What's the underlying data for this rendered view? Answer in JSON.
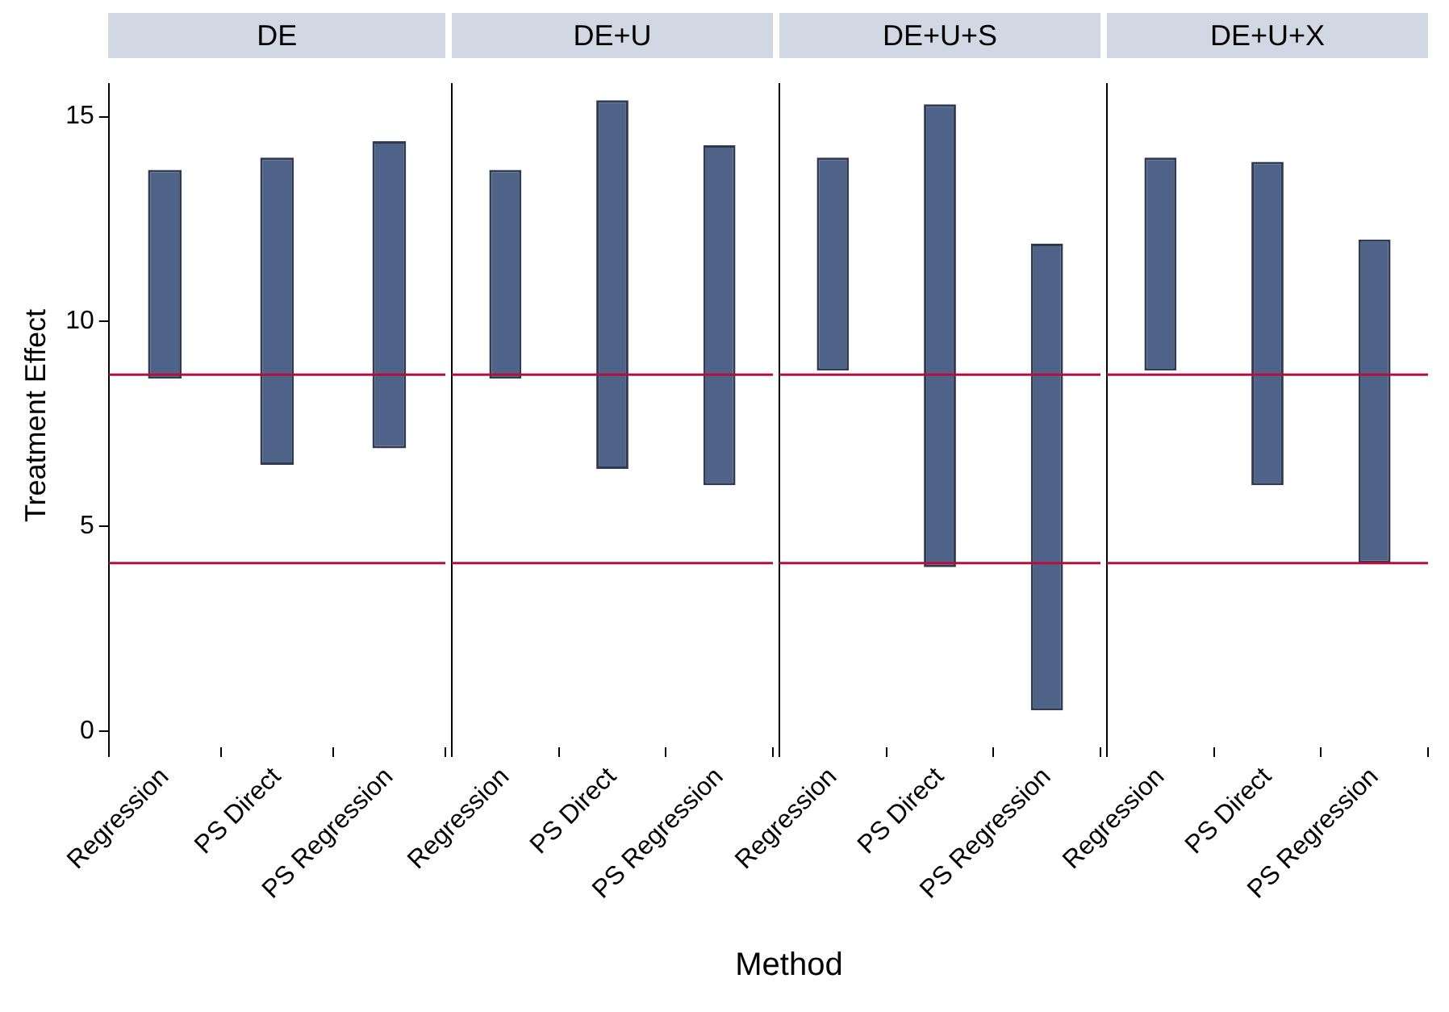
{
  "chart_data": [
    {
      "type": "bar",
      "title": "DE",
      "ylabel": "Treatment Effect",
      "categories": [
        "Regression",
        "PS Direct",
        "PS Regression"
      ],
      "base": [
        8.6,
        6.5,
        6.9
      ],
      "values": [
        5.1,
        7.5,
        7.5
      ],
      "color": "#4f6389",
      "ylim": [
        -0.4,
        15.8
      ],
      "yticks": [
        0,
        5,
        10,
        15
      ],
      "grid": false,
      "legend": false,
      "ref_lines": [
        {
          "axis": "y",
          "value": 8.7,
          "color": "#b5103c"
        },
        {
          "axis": "y",
          "value": 4.1,
          "color": "#b5103c"
        }
      ]
    },
    {
      "type": "bar",
      "title": "DE+U",
      "xlabel": "Method",
      "categories": [
        "Regression",
        "PS Direct",
        "PS Regression"
      ],
      "base": [
        8.6,
        6.4,
        6.0
      ],
      "values": [
        5.1,
        9.0,
        8.3
      ],
      "color": "#4f6389",
      "ylim": [
        -0.4,
        15.8
      ],
      "yticks": [
        0,
        5,
        10,
        15
      ],
      "tick_labels": "x",
      "grid": false,
      "legend": false,
      "ref_lines": [
        {
          "axis": "y",
          "value": 8.7,
          "color": "#b5103c"
        },
        {
          "axis": "y",
          "value": 4.1,
          "color": "#b5103c"
        }
      ]
    },
    {
      "type": "bar",
      "title": "DE+U+S",
      "categories": [
        "Regression",
        "PS Direct",
        "PS Regression"
      ],
      "base": [
        8.8,
        4.0,
        0.5
      ],
      "values": [
        5.2,
        11.3,
        11.4
      ],
      "color": "#4f6389",
      "ylim": [
        -0.4,
        15.8
      ],
      "yticks": [
        0,
        5,
        10,
        15
      ],
      "tick_labels": "x",
      "grid": false,
      "legend": false,
      "ref_lines": [
        {
          "axis": "y",
          "value": 8.7,
          "color": "#b5103c"
        },
        {
          "axis": "y",
          "value": 4.1,
          "color": "#b5103c"
        }
      ]
    },
    {
      "type": "bar",
      "title": "DE+U+X",
      "categories": [
        "Regression",
        "PS Direct",
        "PS Regression"
      ],
      "base": [
        8.8,
        6.0,
        4.1
      ],
      "values": [
        5.2,
        7.9,
        7.9
      ],
      "color": "#4f6389",
      "ylim": [
        -0.4,
        15.8
      ],
      "yticks": [
        0,
        5,
        10,
        15
      ],
      "tick_labels": "x",
      "grid": false,
      "legend": false,
      "ref_lines": [
        {
          "axis": "y",
          "value": 8.7,
          "color": "#b5103c"
        },
        {
          "axis": "y",
          "value": 4.1,
          "color": "#b5103c"
        }
      ]
    }
  ]
}
